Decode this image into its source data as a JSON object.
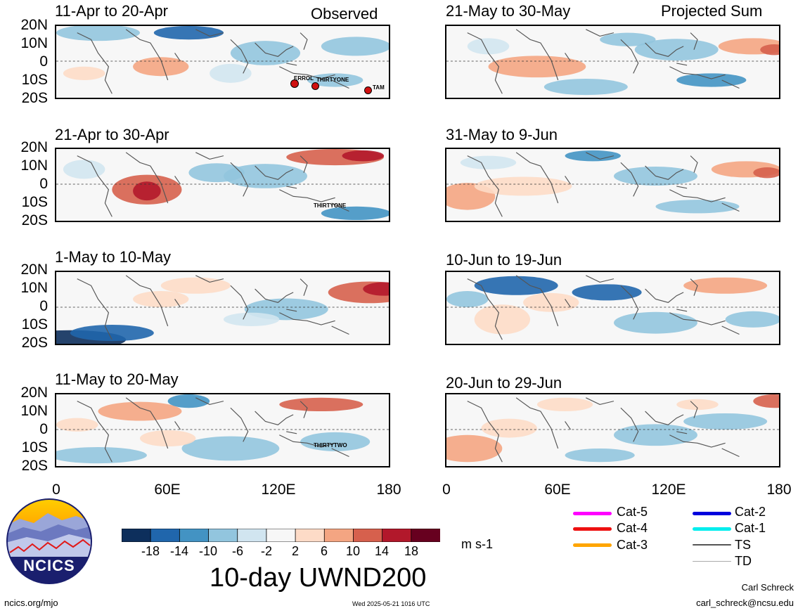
{
  "headers": {
    "observed": "Observed",
    "projected": "Projected Sum"
  },
  "lat_labels": [
    "20N",
    "10N",
    "0",
    "10S",
    "20S"
  ],
  "lon_labels": [
    "0",
    "60E",
    "120E",
    "180"
  ],
  "panels": [
    {
      "title": "11-Apr to 20-Apr",
      "storms": [
        "ERROL",
        "THIRTYONE",
        "TAM"
      ]
    },
    {
      "title": "21-Apr to 30-Apr",
      "storms": [
        "THIRTYONE"
      ]
    },
    {
      "title": "1-May to 10-May",
      "storms": []
    },
    {
      "title": "11-May to 20-May",
      "storms": [
        "THIRTYTWO"
      ]
    },
    {
      "title": "21-May to 30-May",
      "storms": []
    },
    {
      "title": "31-May to 9-Jun",
      "storms": []
    },
    {
      "title": "10-Jun to 19-Jun",
      "storms": []
    },
    {
      "title": "20-Jun to 29-Jun",
      "storms": []
    }
  ],
  "colorbar": {
    "labels": [
      "-18",
      "-14",
      "-10",
      "-6",
      "-2",
      "2",
      "6",
      "10",
      "14",
      "18"
    ],
    "colors": [
      "#0d2f5c",
      "#2066ac",
      "#4393c3",
      "#92c5de",
      "#d1e5f0",
      "#f7f7f7",
      "#fddbc7",
      "#f4a582",
      "#d6604d",
      "#b2182b",
      "#67001f"
    ],
    "units": "m s-1",
    "title": "10-day UWND200"
  },
  "legend": [
    {
      "label": "Cat-5",
      "color": "#ff00ff"
    },
    {
      "label": "Cat-4",
      "color": "#ee1111"
    },
    {
      "label": "Cat-3",
      "color": "#ffa500"
    },
    {
      "label": "Cat-2",
      "color": "#0000dd"
    },
    {
      "label": "Cat-1",
      "color": "#00eeee"
    },
    {
      "label": "TS",
      "color": "#555555"
    },
    {
      "label": "TD",
      "color": "#aaaaaa"
    }
  ],
  "logo_text": "NCICS",
  "footer": {
    "url": "ncics.org/mjo",
    "timestamp": "Wed 2025-05-21 1016 UTC",
    "author": "Carl Schreck",
    "email": "carl_schreck@ncsu.edu"
  }
}
